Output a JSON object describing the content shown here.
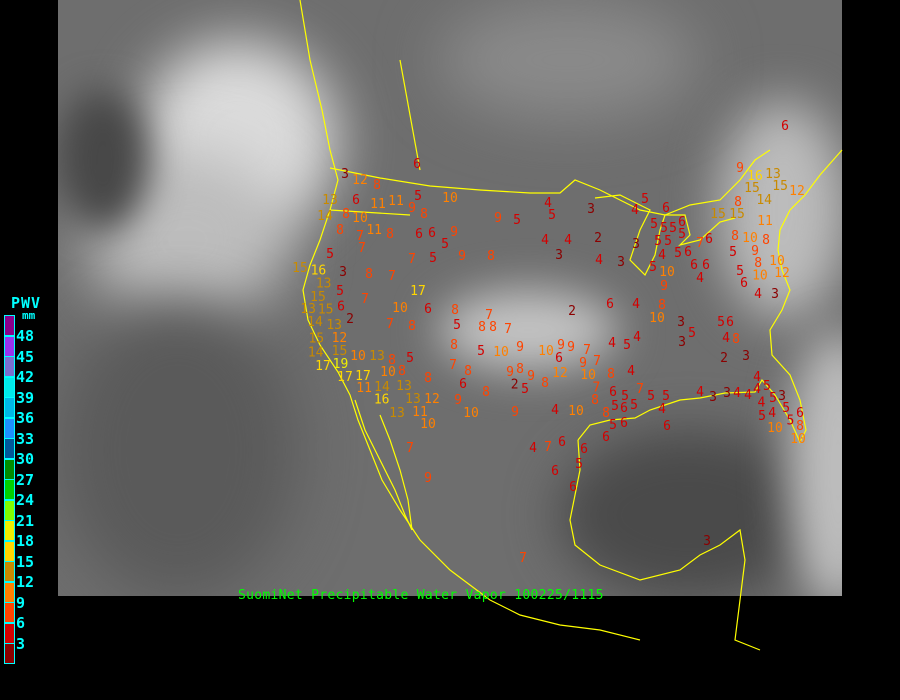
{
  "legend": {
    "title": "PWV",
    "unit": "mm",
    "labels": [
      "48",
      "45",
      "42",
      "39",
      "36",
      "33",
      "30",
      "27",
      "24",
      "21",
      "18",
      "15",
      "12",
      "9",
      "6",
      "3"
    ],
    "colors": [
      "#8b008b",
      "#9933ee",
      "#7a6fd0",
      "#00eaea",
      "#00b8e6",
      "#1e90ff",
      "#00589a",
      "#008c00",
      "#00d000",
      "#80ff00",
      "#f0f000",
      "#ffd700",
      "#c88a00",
      "#ff8000",
      "#ff4400",
      "#d40000",
      "#8b0000"
    ]
  },
  "caption": "SuomiNet Precipitable Water Vapor 100225/1115",
  "colors": {
    "coastline": "#ffff00",
    "caption": "#00ff00",
    "legend_text": "#00ffff",
    "background": "#000000"
  },
  "station_readings_mm": [
    6,
    3,
    12,
    8,
    5,
    10,
    13,
    6,
    11,
    11,
    9,
    8,
    14,
    8,
    10,
    9,
    5,
    8,
    11,
    7,
    8,
    6,
    6,
    9,
    5,
    7,
    9,
    8,
    5,
    7,
    5,
    15,
    16,
    13,
    3,
    8,
    7,
    15,
    5,
    15,
    6,
    7,
    17,
    13,
    14,
    13,
    12,
    2,
    10,
    6,
    8,
    15,
    7,
    8,
    5,
    8,
    8,
    7,
    7,
    14,
    15,
    8,
    5,
    10,
    9,
    19,
    10,
    13,
    8,
    5,
    10,
    8,
    7,
    8,
    17,
    17,
    8,
    6,
    9,
    8,
    17,
    13,
    13,
    11,
    14,
    16,
    12,
    9,
    8,
    13,
    11,
    10,
    10,
    9,
    4,
    5,
    3,
    4,
    5,
    6,
    5,
    5,
    5,
    6,
    5,
    4,
    4,
    2,
    3,
    5,
    5,
    4,
    7,
    6,
    8,
    10,
    3,
    4,
    3,
    5,
    10,
    5,
    6,
    6,
    6,
    4,
    5,
    9,
    8,
    10,
    12,
    5,
    6,
    9,
    10,
    8,
    4,
    3,
    6,
    4,
    2,
    3,
    5,
    6,
    8,
    10,
    9,
    9,
    7,
    6,
    9,
    7,
    4,
    5,
    4,
    3,
    5,
    4,
    2,
    3,
    2,
    9,
    12,
    10,
    7,
    8,
    4,
    5,
    8,
    8,
    6,
    5,
    7,
    5,
    5,
    5,
    5,
    4,
    10,
    8,
    6,
    5,
    6,
    4,
    4,
    3,
    3,
    4,
    4,
    4,
    4,
    5,
    5,
    3,
    5,
    4,
    5,
    4,
    5,
    6,
    8,
    10,
    10,
    6,
    4,
    7,
    6,
    6,
    5,
    6,
    6,
    6,
    7,
    9,
    7,
    3,
    6,
    9,
    16,
    13,
    15,
    14,
    15,
    12,
    15,
    15,
    8,
    11,
    8,
    10,
    9
  ]
}
